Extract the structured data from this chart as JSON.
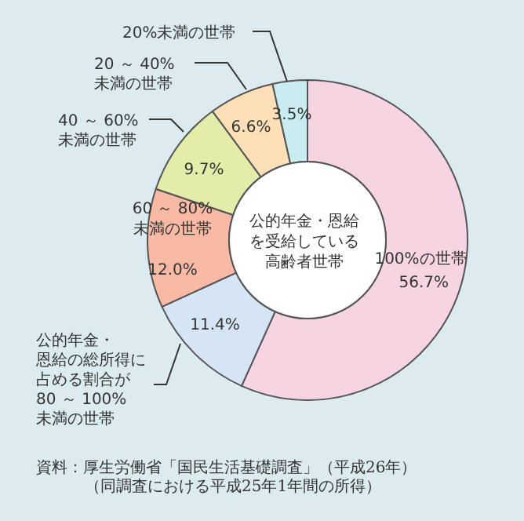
{
  "chart_data": {
    "type": "donut",
    "title": "公的年金・恩給を受給している高齢者世帯",
    "categories": [
      "100%の世帯",
      "公的年金・恩給の総所得に占める割合が80 ～ 100%\n未満の世帯",
      "60 ～ 80%\n未満の世帯",
      "40 ～ 60%\n未満の世帯",
      "20 ～ 40%\n未満の世帯",
      "20%未満の世帯"
    ],
    "values": [
      56.7,
      11.4,
      12.0,
      9.7,
      6.6,
      3.5
    ],
    "value_labels": [
      "56.7%",
      "11.4%",
      "12.0%",
      "9.7%",
      "6.6%",
      "3.5%"
    ],
    "colors": [
      "#f7d4e2",
      "#d5e5f5",
      "#f8b9a5",
      "#e3eda9",
      "#fde0b8",
      "#c8ecef"
    ],
    "annotations": [
      "資料：厚生労働省「国民生活基礎調査」（平成26年）",
      "（同調査における平成25年1年間の所得）"
    ]
  }
}
